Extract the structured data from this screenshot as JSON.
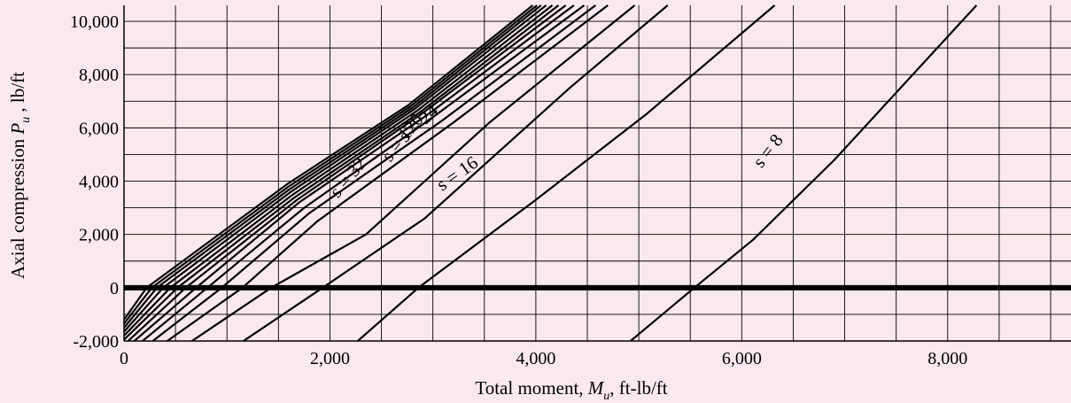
{
  "chart_data": {
    "type": "line",
    "title": "",
    "xlabel": "Total moment, M_u, ft-lb/ft",
    "xlabel_parts": {
      "pre": "Total moment, ",
      "sym": "M",
      "sub": "u",
      "post": ", ft-lb/ft"
    },
    "ylabel": "Axial compression P_u , lb/ft",
    "ylabel_parts": {
      "pre": "Axial compression ",
      "sym": "P",
      "sub": "u",
      "post": " , lb/ft"
    },
    "xlim": [
      0,
      9000
    ],
    "ylim": [
      -2000,
      10600
    ],
    "x_tick_values": [
      0,
      2000,
      4000,
      6000,
      8000
    ],
    "x_tick_labels": [
      "0",
      "2,000",
      "4,000",
      "6,000",
      "8,000"
    ],
    "y_tick_values": [
      -2000,
      0,
      2000,
      4000,
      6000,
      8000,
      10000
    ],
    "y_tick_labels": [
      "-2,000",
      "0",
      "2,000",
      "4,000",
      "6,000",
      "8,000",
      "10,000"
    ],
    "grid": true,
    "reference_line_y": 0,
    "series": [
      {
        "name": "s = 8",
        "x": [
          4920,
          5540,
          6110,
          6900,
          8280
        ],
        "y": [
          -2000,
          0,
          1800,
          4800,
          10600
        ]
      },
      {
        "name": "s = 16",
        "x": [
          2270,
          2860,
          4000,
          5070,
          6320
        ],
        "y": [
          -2000,
          0,
          3300,
          6500,
          10600
        ]
      },
      {
        "name": "s = 24",
        "x": [
          1160,
          1930,
          2920,
          4330,
          5280
        ],
        "y": [
          -2000,
          0,
          2600,
          7500,
          10600
        ]
      },
      {
        "name": "s = 32",
        "x": [
          660,
          1430,
          2350,
          3550,
          4960
        ],
        "y": [
          -2000,
          0,
          2000,
          6200,
          10600
        ]
      },
      {
        "x": [
          420,
          1150,
          1880,
          3200,
          4700
        ],
        "y": [
          -2000,
          0,
          2500,
          6200,
          10600
        ]
      },
      {
        "x": [
          280,
          950,
          1800,
          3100,
          4580
        ],
        "y": [
          -2000,
          0,
          2800,
          6300,
          10600
        ]
      },
      {
        "x": [
          180,
          810,
          1750,
          3000,
          4470
        ],
        "y": [
          -2000,
          0,
          3000,
          6400,
          10600
        ]
      },
      {
        "x": [
          100,
          700,
          1700,
          2950,
          4370
        ],
        "y": [
          -2000,
          0,
          3200,
          6500,
          10600
        ]
      },
      {
        "x": [
          40,
          600,
          1680,
          2900,
          4290
        ],
        "y": [
          -2000,
          0,
          3300,
          6550,
          10600
        ]
      },
      {
        "x": [
          0,
          520,
          1660,
          2880,
          4220
        ],
        "y": [
          -1950,
          0,
          3400,
          6600,
          10600
        ]
      },
      {
        "x": [
          0,
          450,
          1640,
          2850,
          4160
        ],
        "y": [
          -1800,
          0,
          3500,
          6650,
          10600
        ]
      },
      {
        "x": [
          0,
          380,
          1620,
          2820,
          4100
        ],
        "y": [
          -1650,
          0,
          3600,
          6700,
          10600
        ]
      },
      {
        "x": [
          0,
          320,
          1610,
          2800,
          4050
        ],
        "y": [
          -1500,
          0,
          3700,
          6750,
          10600
        ]
      },
      {
        "x": [
          0,
          270,
          1600,
          2780,
          4010
        ],
        "y": [
          -1350,
          0,
          3800,
          6800,
          10600
        ]
      },
      {
        "name": "s = 120",
        "x": [
          0,
          220,
          1590,
          2760,
          3970
        ],
        "y": [
          -1200,
          0,
          3900,
          6850,
          10600
        ]
      }
    ],
    "annotations": [
      {
        "text": "s = 120",
        "x": 2750,
        "y": 5500,
        "angle": -52
      },
      {
        "text": "s = 32",
        "x": 2220,
        "y": 4000,
        "angle": -50
      },
      {
        "text": "s = 24",
        "x": 2900,
        "y": 6000,
        "angle": -42
      },
      {
        "text": "s = 16",
        "x": 3270,
        "y": 4100,
        "angle": -35
      },
      {
        "text": "s = 8",
        "x": 6300,
        "y": 5000,
        "angle": -52
      }
    ],
    "colors": {
      "background": "#f9e9ec",
      "lines": "#000000",
      "grid": "#000000"
    }
  }
}
